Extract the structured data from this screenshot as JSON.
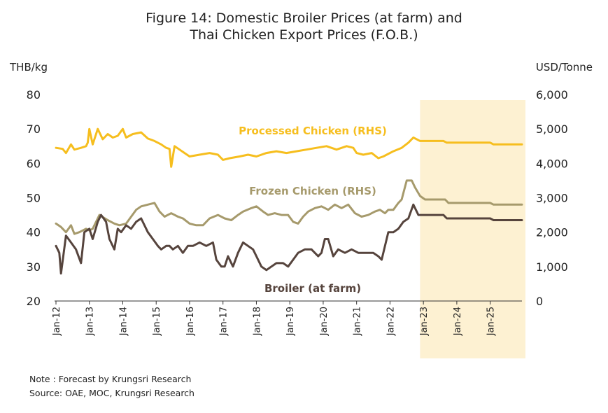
{
  "title_line1": "Figure 14: Domestic Broiler Prices (at farm) and",
  "title_line2": "Thai Chicken Export Prices (F.O.B.)",
  "left_unit": "THB/kg",
  "right_unit": "USD/Tonne",
  "note": "Note : Forecast by Krungsri Research",
  "source": "Source: OAE, MOC, Krungsri Research",
  "colors": {
    "processed": "#F6BE1E",
    "frozen": "#A69A6C",
    "broiler": "#56443D",
    "forecast_shade": "#FDF1D2",
    "axis": "#333333"
  },
  "chart_data": {
    "type": "line",
    "x_tick_labels": [
      "Jan-12",
      "Jan-13",
      "Jan-14",
      "Jan-15",
      "Jan-16",
      "Jan-17",
      "Jan-18",
      "Jan-19",
      "Jan-20",
      "Jan-21",
      "Jan-22",
      "Jan-23",
      "Jan-24",
      "Jan-25"
    ],
    "x_range": [
      2012.0,
      2025.95
    ],
    "forecast_start": 2022.9,
    "left_axis": {
      "label": "THB/kg",
      "ylim": [
        20,
        80
      ],
      "ticks": [
        "20",
        "30",
        "40",
        "50",
        "60",
        "70",
        "80"
      ]
    },
    "right_axis": {
      "label": "USD/Tonne",
      "ylim": [
        0,
        6000
      ],
      "ticks": [
        "0",
        "1,000",
        "2,000",
        "3,000",
        "4,000",
        "5,000",
        "6,000"
      ]
    },
    "series": [
      {
        "name": "Processed Chicken (RHS)",
        "axis": "right",
        "points": [
          [
            2012.0,
            4450
          ],
          [
            2012.2,
            4420
          ],
          [
            2012.3,
            4300
          ],
          [
            2012.45,
            4550
          ],
          [
            2012.55,
            4400
          ],
          [
            2012.75,
            4450
          ],
          [
            2012.9,
            4500
          ],
          [
            2012.95,
            4600
          ],
          [
            2013.0,
            5000
          ],
          [
            2013.1,
            4550
          ],
          [
            2013.25,
            5000
          ],
          [
            2013.4,
            4700
          ],
          [
            2013.55,
            4850
          ],
          [
            2013.7,
            4750
          ],
          [
            2013.85,
            4800
          ],
          [
            2014.0,
            5000
          ],
          [
            2014.1,
            4750
          ],
          [
            2014.3,
            4850
          ],
          [
            2014.55,
            4900
          ],
          [
            2014.75,
            4720
          ],
          [
            2014.95,
            4650
          ],
          [
            2015.15,
            4550
          ],
          [
            2015.3,
            4450
          ],
          [
            2015.4,
            4420
          ],
          [
            2015.45,
            3900
          ],
          [
            2015.55,
            4500
          ],
          [
            2015.7,
            4400
          ],
          [
            2015.85,
            4300
          ],
          [
            2016.0,
            4200
          ],
          [
            2016.3,
            4250
          ],
          [
            2016.6,
            4300
          ],
          [
            2016.85,
            4250
          ],
          [
            2017.0,
            4100
          ],
          [
            2017.2,
            4150
          ],
          [
            2017.5,
            4200
          ],
          [
            2017.75,
            4250
          ],
          [
            2018.0,
            4200
          ],
          [
            2018.3,
            4300
          ],
          [
            2018.6,
            4350
          ],
          [
            2018.9,
            4300
          ],
          [
            2019.2,
            4350
          ],
          [
            2019.5,
            4400
          ],
          [
            2019.8,
            4450
          ],
          [
            2020.1,
            4500
          ],
          [
            2020.4,
            4400
          ],
          [
            2020.7,
            4500
          ],
          [
            2020.9,
            4450
          ],
          [
            2021.0,
            4300
          ],
          [
            2021.2,
            4250
          ],
          [
            2021.45,
            4300
          ],
          [
            2021.65,
            4150
          ],
          [
            2021.8,
            4200
          ],
          [
            2022.1,
            4350
          ],
          [
            2022.35,
            4450
          ],
          [
            2022.55,
            4600
          ],
          [
            2022.7,
            4750
          ],
          [
            2022.9,
            4650
          ],
          [
            2023.6,
            4650
          ],
          [
            2023.7,
            4600
          ],
          [
            2025.0,
            4600
          ],
          [
            2025.1,
            4550
          ],
          [
            2025.95,
            4550
          ]
        ]
      },
      {
        "name": "Frozen Chicken (RHS)",
        "axis": "right",
        "points": [
          [
            2012.0,
            2250
          ],
          [
            2012.15,
            2150
          ],
          [
            2012.3,
            2000
          ],
          [
            2012.45,
            2200
          ],
          [
            2012.55,
            1950
          ],
          [
            2012.7,
            2000
          ],
          [
            2012.9,
            2100
          ],
          [
            2013.0,
            2050
          ],
          [
            2013.1,
            2100
          ],
          [
            2013.3,
            2500
          ],
          [
            2013.55,
            2350
          ],
          [
            2013.75,
            2250
          ],
          [
            2013.9,
            2200
          ],
          [
            2014.1,
            2250
          ],
          [
            2014.4,
            2650
          ],
          [
            2014.55,
            2750
          ],
          [
            2014.75,
            2800
          ],
          [
            2014.95,
            2850
          ],
          [
            2015.1,
            2600
          ],
          [
            2015.25,
            2450
          ],
          [
            2015.45,
            2550
          ],
          [
            2015.65,
            2450
          ],
          [
            2015.8,
            2400
          ],
          [
            2016.0,
            2250
          ],
          [
            2016.2,
            2200
          ],
          [
            2016.4,
            2200
          ],
          [
            2016.6,
            2400
          ],
          [
            2016.85,
            2500
          ],
          [
            2017.05,
            2400
          ],
          [
            2017.25,
            2350
          ],
          [
            2017.45,
            2500
          ],
          [
            2017.6,
            2600
          ],
          [
            2017.85,
            2700
          ],
          [
            2018.0,
            2750
          ],
          [
            2018.2,
            2600
          ],
          [
            2018.35,
            2500
          ],
          [
            2018.55,
            2550
          ],
          [
            2018.75,
            2500
          ],
          [
            2018.95,
            2500
          ],
          [
            2019.1,
            2300
          ],
          [
            2019.25,
            2250
          ],
          [
            2019.4,
            2450
          ],
          [
            2019.55,
            2600
          ],
          [
            2019.75,
            2700
          ],
          [
            2019.95,
            2750
          ],
          [
            2020.15,
            2650
          ],
          [
            2020.35,
            2800
          ],
          [
            2020.55,
            2700
          ],
          [
            2020.75,
            2800
          ],
          [
            2020.95,
            2550
          ],
          [
            2021.15,
            2450
          ],
          [
            2021.35,
            2500
          ],
          [
            2021.55,
            2600
          ],
          [
            2021.7,
            2650
          ],
          [
            2021.85,
            2550
          ],
          [
            2021.95,
            2650
          ],
          [
            2022.1,
            2650
          ],
          [
            2022.25,
            2850
          ],
          [
            2022.35,
            2950
          ],
          [
            2022.5,
            3500
          ],
          [
            2022.65,
            3500
          ],
          [
            2022.75,
            3300
          ],
          [
            2022.9,
            3050
          ],
          [
            2023.05,
            2950
          ],
          [
            2023.65,
            2950
          ],
          [
            2023.75,
            2850
          ],
          [
            2025.0,
            2850
          ],
          [
            2025.1,
            2800
          ],
          [
            2025.95,
            2800
          ]
        ]
      },
      {
        "name": "Broiler (at farm)",
        "axis": "left",
        "points": [
          [
            2012.0,
            36
          ],
          [
            2012.1,
            34
          ],
          [
            2012.15,
            28
          ],
          [
            2012.3,
            39
          ],
          [
            2012.45,
            37
          ],
          [
            2012.6,
            35
          ],
          [
            2012.75,
            31
          ],
          [
            2012.85,
            40
          ],
          [
            2013.0,
            41
          ],
          [
            2013.1,
            38
          ],
          [
            2013.25,
            43
          ],
          [
            2013.35,
            45
          ],
          [
            2013.5,
            43
          ],
          [
            2013.6,
            38
          ],
          [
            2013.75,
            35
          ],
          [
            2013.85,
            41
          ],
          [
            2013.95,
            40
          ],
          [
            2014.1,
            42
          ],
          [
            2014.25,
            41
          ],
          [
            2014.4,
            43
          ],
          [
            2014.55,
            44
          ],
          [
            2014.75,
            40
          ],
          [
            2014.9,
            38
          ],
          [
            2015.05,
            36
          ],
          [
            2015.15,
            35
          ],
          [
            2015.3,
            36
          ],
          [
            2015.4,
            36
          ],
          [
            2015.5,
            35
          ],
          [
            2015.65,
            36
          ],
          [
            2015.8,
            34
          ],
          [
            2015.95,
            36
          ],
          [
            2016.1,
            36
          ],
          [
            2016.3,
            37
          ],
          [
            2016.5,
            36
          ],
          [
            2016.7,
            37
          ],
          [
            2016.8,
            32
          ],
          [
            2016.95,
            30
          ],
          [
            2017.05,
            30
          ],
          [
            2017.15,
            33
          ],
          [
            2017.3,
            30
          ],
          [
            2017.45,
            34
          ],
          [
            2017.6,
            37
          ],
          [
            2017.75,
            36
          ],
          [
            2017.9,
            35
          ],
          [
            2018.0,
            33
          ],
          [
            2018.15,
            30
          ],
          [
            2018.3,
            29
          ],
          [
            2018.45,
            30
          ],
          [
            2018.6,
            31
          ],
          [
            2018.8,
            31
          ],
          [
            2018.95,
            30
          ],
          [
            2019.1,
            32
          ],
          [
            2019.25,
            34
          ],
          [
            2019.45,
            35
          ],
          [
            2019.65,
            35
          ],
          [
            2019.85,
            33
          ],
          [
            2019.95,
            34
          ],
          [
            2020.05,
            38
          ],
          [
            2020.15,
            38
          ],
          [
            2020.3,
            33
          ],
          [
            2020.45,
            35
          ],
          [
            2020.65,
            34
          ],
          [
            2020.85,
            35
          ],
          [
            2021.05,
            34
          ],
          [
            2021.3,
            34
          ],
          [
            2021.5,
            34
          ],
          [
            2021.65,
            33
          ],
          [
            2021.75,
            32
          ],
          [
            2021.95,
            40
          ],
          [
            2022.1,
            40
          ],
          [
            2022.25,
            41
          ],
          [
            2022.4,
            43
          ],
          [
            2022.55,
            44
          ],
          [
            2022.7,
            48
          ],
          [
            2022.85,
            45
          ],
          [
            2023.0,
            45
          ],
          [
            2023.6,
            45
          ],
          [
            2023.7,
            44
          ],
          [
            2025.0,
            44
          ],
          [
            2025.1,
            43.5
          ],
          [
            2025.95,
            43.5
          ]
        ]
      }
    ],
    "series_labels": [
      {
        "text": "Processed Chicken (RHS)",
        "key": "processed"
      },
      {
        "text": "Frozen Chicken (RHS)",
        "key": "frozen"
      },
      {
        "text": "Broiler (at farm)",
        "key": "broiler"
      }
    ]
  }
}
